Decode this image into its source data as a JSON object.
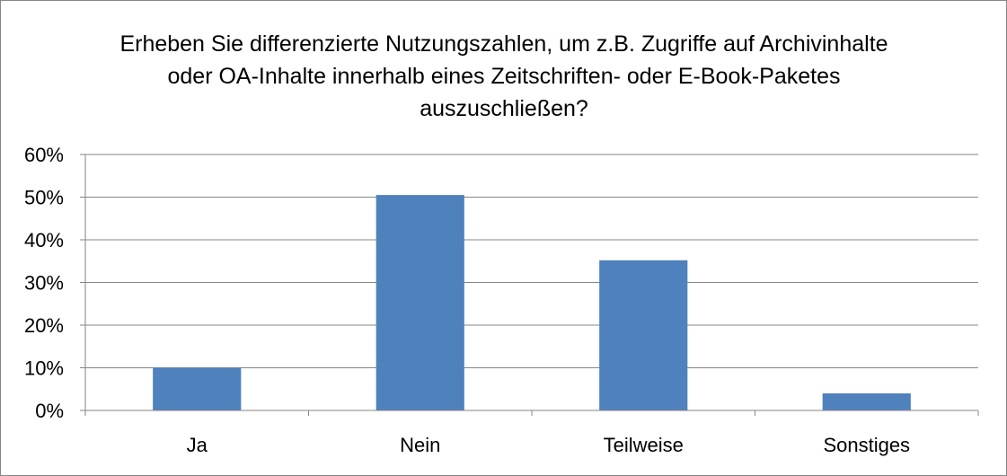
{
  "chart_data": {
    "type": "bar",
    "title": "Erheben Sie differenzierte Nutzungszahlen, um z.B. Zugriffe auf Archivinhalte oder OA-Inhalte innerhalb eines Zeitschriften- oder E-Book-Paketes auszuschließen?",
    "categories": [
      "Ja",
      "Nein",
      "Teilweise",
      "Sonstiges"
    ],
    "values": [
      10,
      50.5,
      35.2,
      4
    ],
    "value_format": "percent",
    "ylim": [
      0,
      60
    ],
    "ytick_labels": [
      "0%",
      "10%",
      "20%",
      "30%",
      "40%",
      "50%",
      "60%"
    ],
    "grid": true,
    "legend": "none",
    "bar_color": "#4F81BD"
  }
}
